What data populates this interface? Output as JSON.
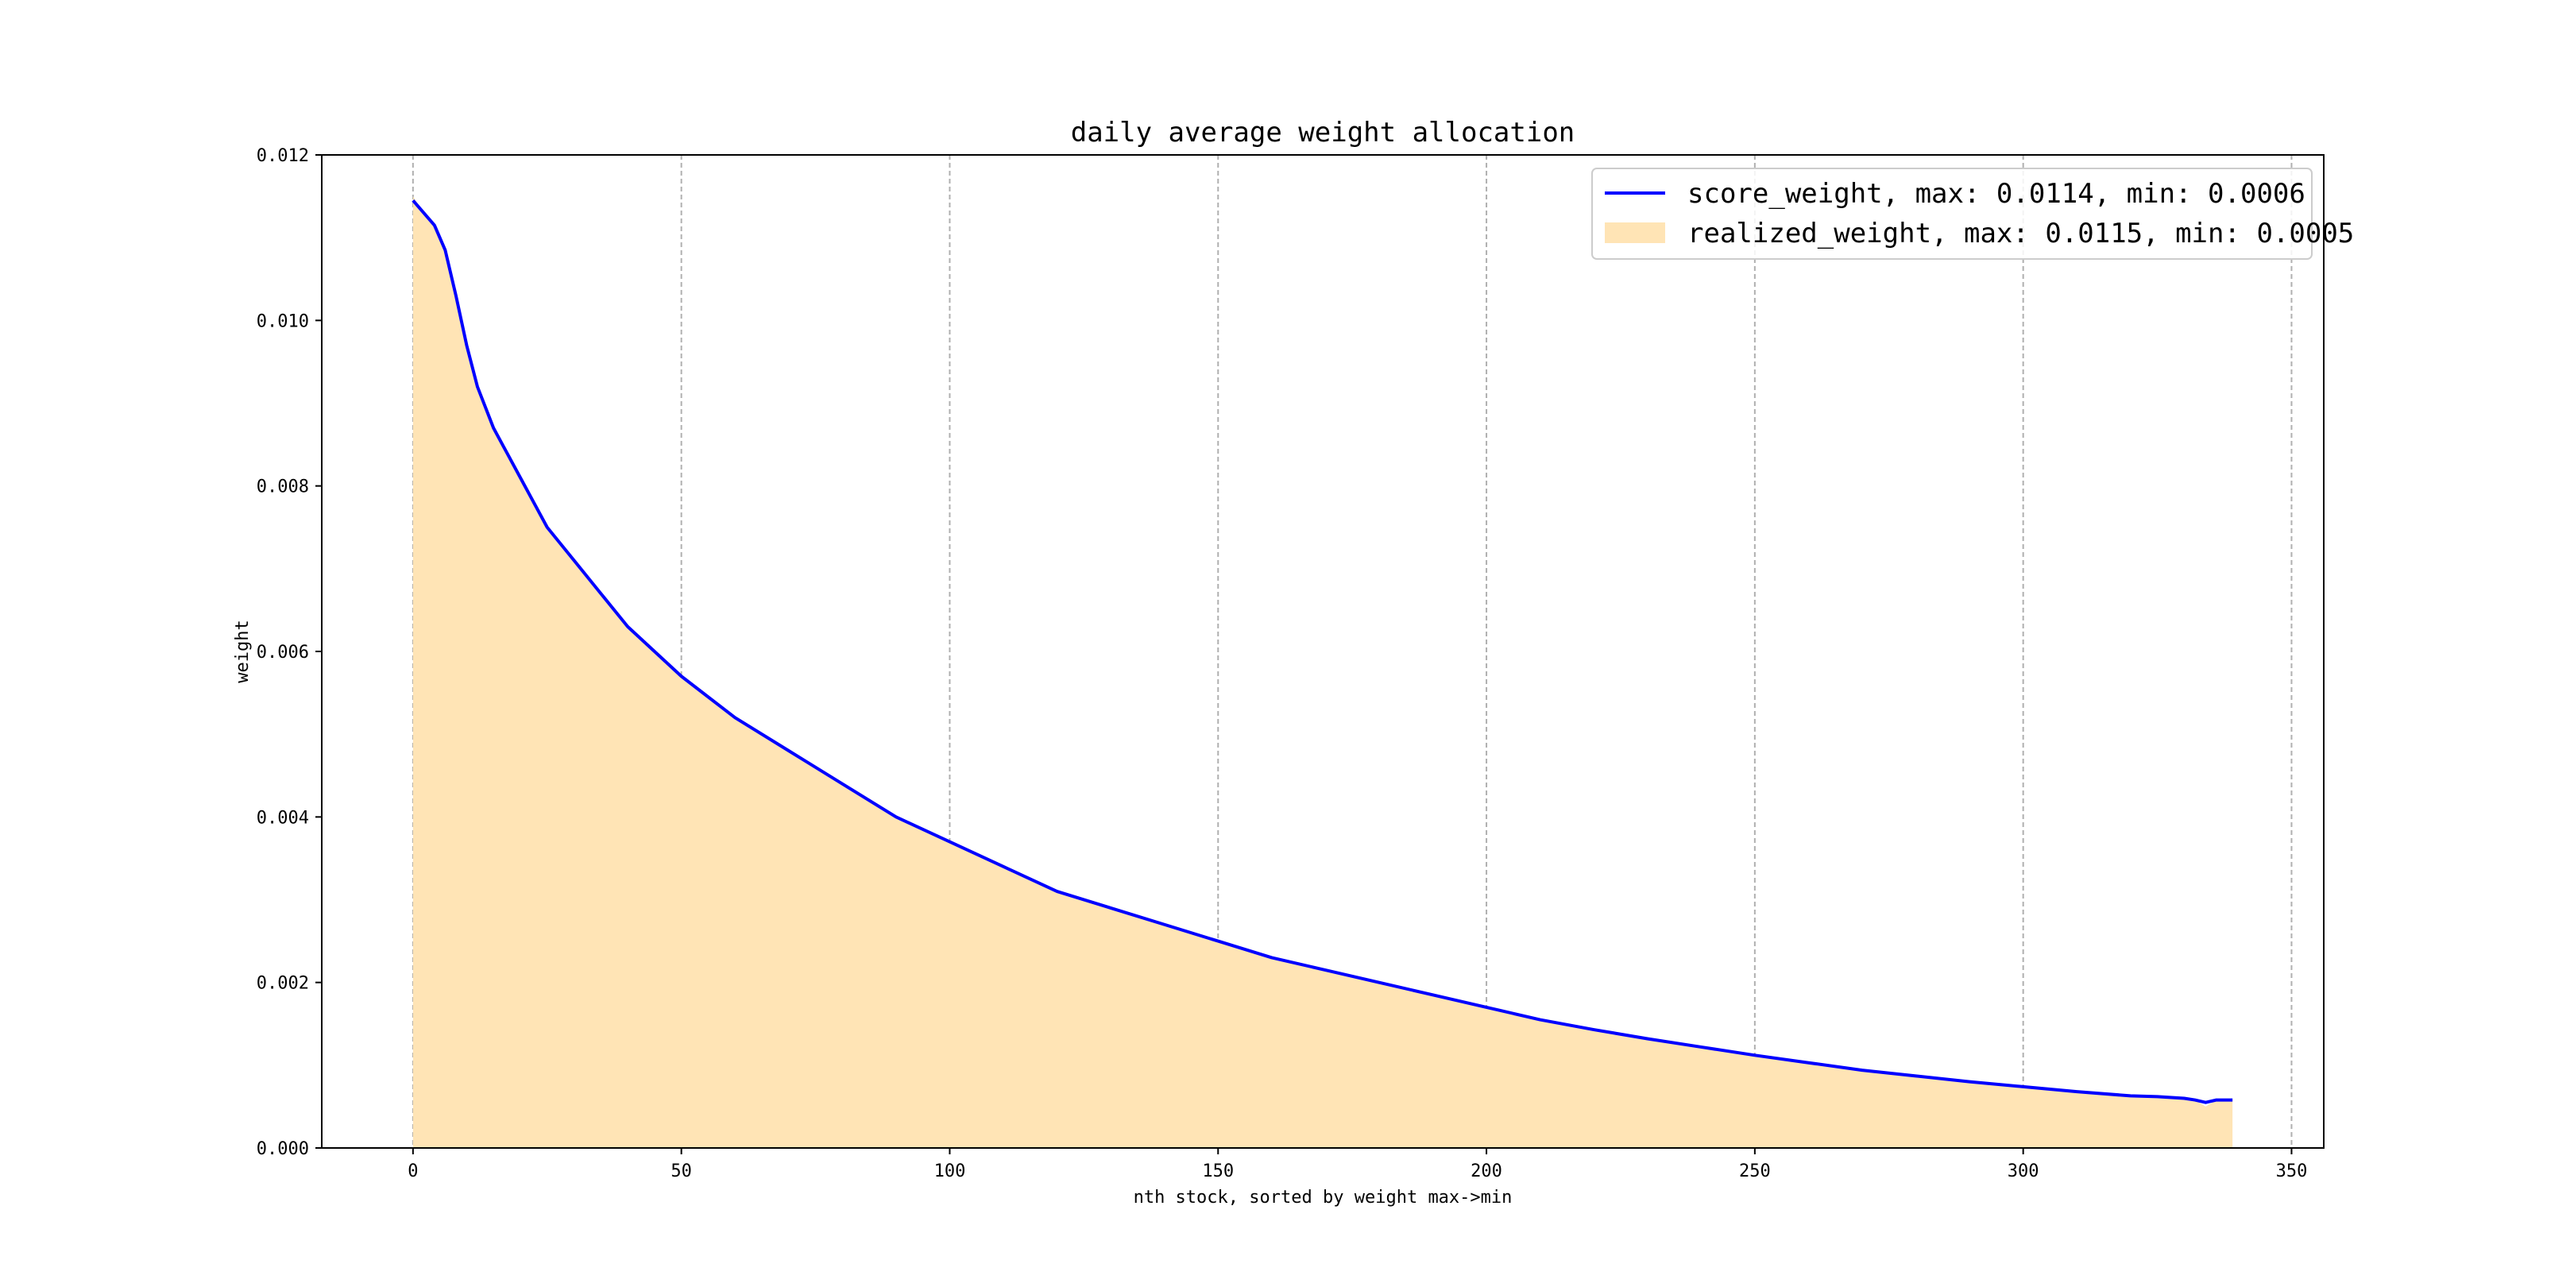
{
  "chart_data": {
    "type": "area",
    "title": "daily average weight allocation",
    "xlabel": "nth stock, sorted by weight max->min",
    "ylabel": "weight",
    "xlim": [
      -17,
      356
    ],
    "ylim": [
      0,
      0.012
    ],
    "x_ticks": [
      0,
      50,
      100,
      150,
      200,
      250,
      300,
      350
    ],
    "x_tick_labels": [
      "0",
      "50",
      "100",
      "150",
      "200",
      "250",
      "300",
      "350"
    ],
    "y_ticks": [
      0,
      0.002,
      0.004,
      0.006,
      0.008,
      0.01,
      0.012
    ],
    "y_tick_labels": [
      "0.000",
      "0.002",
      "0.004",
      "0.006",
      "0.008",
      "0.010",
      "0.012"
    ],
    "grid": "vertical dashed",
    "legend": "upper-right",
    "series": [
      {
        "name": "score_weight, max: 0.0114, min: 0.0006",
        "kind": "line",
        "color": "#0000ff",
        "x": [
          0,
          2,
          4,
          6,
          8,
          10,
          12,
          15,
          20,
          25,
          30,
          35,
          40,
          45,
          50,
          60,
          70,
          80,
          90,
          100,
          110,
          120,
          130,
          140,
          150,
          160,
          170,
          180,
          190,
          200,
          210,
          220,
          230,
          240,
          250,
          260,
          270,
          280,
          290,
          300,
          310,
          320,
          325,
          330,
          332,
          334,
          336,
          338,
          339
        ],
        "y": [
          0.01145,
          0.0113,
          0.01115,
          0.01085,
          0.0103,
          0.0097,
          0.0092,
          0.0087,
          0.0081,
          0.0075,
          0.0071,
          0.0067,
          0.0063,
          0.006,
          0.0057,
          0.0052,
          0.0048,
          0.0044,
          0.004,
          0.0037,
          0.0034,
          0.0031,
          0.0029,
          0.0027,
          0.0025,
          0.0023,
          0.00215,
          0.002,
          0.00185,
          0.0017,
          0.00155,
          0.00143,
          0.00132,
          0.00122,
          0.00112,
          0.00103,
          0.00094,
          0.00087,
          0.0008,
          0.00074,
          0.00068,
          0.00063,
          0.00062,
          0.0006,
          0.00058,
          0.00055,
          0.00058,
          0.00058,
          0.00058
        ]
      },
      {
        "name": "realized_weight, max: 0.0115, min: 0.0005",
        "kind": "area",
        "color": "#ffe4b5",
        "x": [
          0,
          2,
          4,
          6,
          8,
          10,
          12,
          15,
          20,
          25,
          30,
          35,
          40,
          45,
          50,
          60,
          70,
          80,
          90,
          100,
          110,
          120,
          130,
          140,
          150,
          160,
          170,
          180,
          190,
          200,
          210,
          220,
          230,
          240,
          250,
          260,
          270,
          280,
          290,
          300,
          310,
          320,
          325,
          330,
          332,
          334,
          336,
          338,
          339
        ],
        "y": [
          0.0115,
          0.0113,
          0.01115,
          0.01085,
          0.0103,
          0.0097,
          0.0092,
          0.0087,
          0.0081,
          0.0075,
          0.0071,
          0.0067,
          0.0063,
          0.006,
          0.0057,
          0.0052,
          0.0048,
          0.0044,
          0.004,
          0.0037,
          0.0034,
          0.0031,
          0.0029,
          0.0027,
          0.0025,
          0.0023,
          0.00215,
          0.002,
          0.00185,
          0.0017,
          0.00155,
          0.00143,
          0.00132,
          0.00122,
          0.00112,
          0.00103,
          0.00094,
          0.00087,
          0.0008,
          0.00074,
          0.00068,
          0.00063,
          0.00062,
          0.0006,
          0.00058,
          0.0005,
          0.00058,
          0.00058,
          0.00058
        ]
      }
    ]
  }
}
